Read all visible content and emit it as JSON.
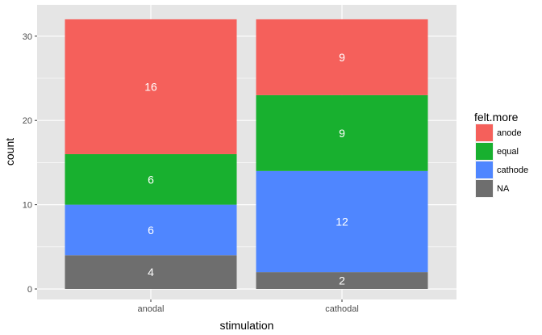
{
  "chart_data": {
    "type": "bar",
    "stacked": true,
    "categories": [
      "anodal",
      "cathodal"
    ],
    "series": [
      {
        "name": "NA",
        "values": [
          4,
          2
        ],
        "color": "#6e6e6e"
      },
      {
        "name": "cathode",
        "values": [
          6,
          12
        ],
        "color": "#4f86ff"
      },
      {
        "name": "equal",
        "values": [
          6,
          9
        ],
        "color": "#18b02f"
      },
      {
        "name": "anode",
        "values": [
          16,
          9
        ],
        "color": "#f5605b"
      }
    ],
    "data_labels": [
      [
        "4",
        "6",
        "6",
        "16"
      ],
      [
        "2",
        "12",
        "9",
        "9"
      ]
    ],
    "legend_order": [
      "anode",
      "equal",
      "cathode",
      "NA"
    ],
    "xlabel": "stimulation",
    "ylabel": "count",
    "legend_title": "felt.more",
    "legend_position": "right",
    "ylim": [
      0,
      33.6
    ],
    "yticks": [
      0,
      10,
      20,
      30
    ],
    "ytick_labels": [
      "0",
      "10",
      "20",
      "30"
    ],
    "grid": true,
    "panel_color": "#e5e5e5",
    "grid_color": "#ffffff"
  }
}
